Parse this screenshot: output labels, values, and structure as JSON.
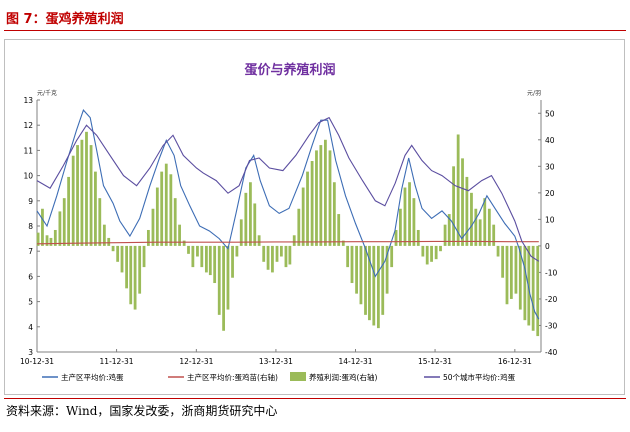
{
  "header": {
    "figure_caption": "图 7：蛋鸡养殖利润"
  },
  "footer": {
    "source": "资料来源：Wind，国家发改委，浙商期货研究中心"
  },
  "colors": {
    "caption_red": "#c00000",
    "egg_price_blue": "#3d6db5",
    "ratio_red": "#c0504d",
    "profit_green": "#9bbb59",
    "city_price_purple": "#5b4ea0",
    "title_purple": "#7030a0"
  },
  "chart_data": {
    "type": "line",
    "title": "蛋价与养殖利润",
    "left_axis": {
      "unit": "元/千克",
      "ylim": [
        3,
        13
      ],
      "ticks": [
        3,
        4,
        5,
        6,
        7,
        8,
        9,
        10,
        11,
        12,
        13
      ]
    },
    "right_axis": {
      "unit": "元/羽",
      "ylim": [
        -40,
        55
      ],
      "ticks": [
        -40,
        -30,
        -20,
        -10,
        0,
        10,
        20,
        30,
        40,
        50
      ]
    },
    "x_axis": {
      "range": [
        "2010-12-31",
        "2017-04-30"
      ],
      "tick_labels": [
        "10-12-31",
        "11-12-31",
        "12-12-31",
        "13-12-31",
        "14-12-31",
        "15-12-31",
        "16-12-31"
      ]
    },
    "grid": false,
    "legend_position": "bottom",
    "series": [
      {
        "name": "主产区平均价:鸡蛋",
        "axis": "left",
        "type": "line",
        "points": [
          [
            "2010-12-31",
            8.6
          ],
          [
            "2011-02-15",
            8.0
          ],
          [
            "2011-04-01",
            9.2
          ],
          [
            "2011-05-15",
            10.5
          ],
          [
            "2011-06-30",
            11.8
          ],
          [
            "2011-08-01",
            12.6
          ],
          [
            "2011-09-01",
            12.3
          ],
          [
            "2011-10-01",
            11.0
          ],
          [
            "2011-11-01",
            9.6
          ],
          [
            "2011-12-15",
            8.9
          ],
          [
            "2012-01-15",
            8.2
          ],
          [
            "2012-03-01",
            7.6
          ],
          [
            "2012-04-15",
            8.3
          ],
          [
            "2012-06-01",
            9.6
          ],
          [
            "2012-07-15",
            10.7
          ],
          [
            "2012-08-15",
            11.4
          ],
          [
            "2012-09-20",
            10.8
          ],
          [
            "2012-10-20",
            9.6
          ],
          [
            "2012-12-01",
            8.8
          ],
          [
            "2013-01-15",
            8.0
          ],
          [
            "2013-03-01",
            7.8
          ],
          [
            "2013-04-15",
            7.5
          ],
          [
            "2013-05-25",
            7.1
          ],
          [
            "2013-07-01",
            8.5
          ],
          [
            "2013-08-15",
            10.3
          ],
          [
            "2013-09-20",
            10.8
          ],
          [
            "2013-10-20",
            9.8
          ],
          [
            "2013-12-01",
            8.8
          ],
          [
            "2014-01-15",
            8.5
          ],
          [
            "2014-03-01",
            8.7
          ],
          [
            "2014-05-01",
            10.0
          ],
          [
            "2014-06-15",
            11.2
          ],
          [
            "2014-07-25",
            12.2
          ],
          [
            "2014-08-25",
            12.2
          ],
          [
            "2014-10-01",
            10.6
          ],
          [
            "2014-11-15",
            9.2
          ],
          [
            "2014-12-31",
            8.1
          ],
          [
            "2015-02-15",
            7.1
          ],
          [
            "2015-04-01",
            6.0
          ],
          [
            "2015-05-15",
            6.6
          ],
          [
            "2015-06-30",
            7.8
          ],
          [
            "2015-08-01",
            9.5
          ],
          [
            "2015-09-01",
            10.7
          ],
          [
            "2015-10-01",
            9.6
          ],
          [
            "2015-11-01",
            8.7
          ],
          [
            "2015-12-15",
            8.3
          ],
          [
            "2016-02-01",
            8.6
          ],
          [
            "2016-03-15",
            8.2
          ],
          [
            "2016-05-01",
            7.5
          ],
          [
            "2016-06-15",
            8.0
          ],
          [
            "2016-07-20",
            8.5
          ],
          [
            "2016-08-25",
            9.2
          ],
          [
            "2016-10-01",
            8.7
          ],
          [
            "2016-11-15",
            8.1
          ],
          [
            "2016-12-31",
            7.6
          ],
          [
            "2017-01-20",
            7.1
          ],
          [
            "2017-02-15",
            6.3
          ],
          [
            "2017-03-10",
            5.3
          ],
          [
            "2017-04-01",
            4.6
          ],
          [
            "2017-04-20",
            4.3
          ]
        ]
      },
      {
        "name": "主产区平均价:蛋鸡苗(右轴)",
        "axis": "right",
        "type": "line",
        "points": [
          [
            "2010-12-31",
            0.8
          ],
          [
            "2011-06-30",
            1.0
          ],
          [
            "2011-12-31",
            1.2
          ],
          [
            "2012-06-30",
            1.4
          ],
          [
            "2012-12-31",
            1.4
          ],
          [
            "2013-06-30",
            1.4
          ],
          [
            "2013-12-31",
            1.5
          ],
          [
            "2014-06-30",
            1.5
          ],
          [
            "2014-12-31",
            1.6
          ],
          [
            "2015-06-30",
            1.6
          ],
          [
            "2015-12-31",
            1.7
          ],
          [
            "2016-06-30",
            1.7
          ],
          [
            "2016-12-31",
            1.6
          ],
          [
            "2017-04-20",
            1.6
          ]
        ]
      },
      {
        "name": "养殖利润:蛋鸡(右轴)",
        "axis": "right",
        "type": "bar",
        "points": [
          [
            "2011-01-05",
            5
          ],
          [
            "2011-01-25",
            14
          ],
          [
            "2011-02-15",
            4
          ],
          [
            "2011-03-05",
            3
          ],
          [
            "2011-03-25",
            6
          ],
          [
            "2011-04-15",
            13
          ],
          [
            "2011-05-05",
            18
          ],
          [
            "2011-05-25",
            26
          ],
          [
            "2011-06-15",
            34
          ],
          [
            "2011-07-05",
            38
          ],
          [
            "2011-07-25",
            40
          ],
          [
            "2011-08-15",
            43
          ],
          [
            "2011-09-05",
            38
          ],
          [
            "2011-09-25",
            28
          ],
          [
            "2011-10-15",
            18
          ],
          [
            "2011-11-05",
            8
          ],
          [
            "2011-11-25",
            3
          ],
          [
            "2011-12-15",
            -2
          ],
          [
            "2012-01-05",
            -6
          ],
          [
            "2012-01-25",
            -10
          ],
          [
            "2012-02-15",
            -16
          ],
          [
            "2012-03-05",
            -22
          ],
          [
            "2012-03-25",
            -24
          ],
          [
            "2012-04-15",
            -18
          ],
          [
            "2012-05-05",
            -8
          ],
          [
            "2012-05-25",
            6
          ],
          [
            "2012-06-15",
            14
          ],
          [
            "2012-07-05",
            22
          ],
          [
            "2012-07-25",
            28
          ],
          [
            "2012-08-15",
            31
          ],
          [
            "2012-09-05",
            27
          ],
          [
            "2012-09-25",
            18
          ],
          [
            "2012-10-15",
            8
          ],
          [
            "2012-11-05",
            2
          ],
          [
            "2012-11-25",
            -3
          ],
          [
            "2012-12-15",
            -8
          ],
          [
            "2013-01-05",
            -4
          ],
          [
            "2013-01-25",
            -8
          ],
          [
            "2013-02-15",
            -10
          ],
          [
            "2013-03-05",
            -11
          ],
          [
            "2013-03-25",
            -14
          ],
          [
            "2013-04-15",
            -26
          ],
          [
            "2013-05-05",
            -32
          ],
          [
            "2013-05-25",
            -24
          ],
          [
            "2013-06-15",
            -12
          ],
          [
            "2013-07-05",
            -4
          ],
          [
            "2013-07-25",
            10
          ],
          [
            "2013-08-15",
            20
          ],
          [
            "2013-09-05",
            24
          ],
          [
            "2013-09-25",
            16
          ],
          [
            "2013-10-15",
            4
          ],
          [
            "2013-11-05",
            -6
          ],
          [
            "2013-11-25",
            -9
          ],
          [
            "2013-12-15",
            -10
          ],
          [
            "2014-01-05",
            -6
          ],
          [
            "2014-01-25",
            -4
          ],
          [
            "2014-02-15",
            -8
          ],
          [
            "2014-03-05",
            -7
          ],
          [
            "2014-03-25",
            4
          ],
          [
            "2014-04-15",
            14
          ],
          [
            "2014-05-05",
            22
          ],
          [
            "2014-05-25",
            28
          ],
          [
            "2014-06-15",
            32
          ],
          [
            "2014-07-05",
            36
          ],
          [
            "2014-07-25",
            38
          ],
          [
            "2014-08-15",
            40
          ],
          [
            "2014-09-05",
            36
          ],
          [
            "2014-09-25",
            24
          ],
          [
            "2014-10-15",
            12
          ],
          [
            "2014-11-05",
            2
          ],
          [
            "2014-11-25",
            -8
          ],
          [
            "2014-12-15",
            -14
          ],
          [
            "2015-01-05",
            -18
          ],
          [
            "2015-01-25",
            -22
          ],
          [
            "2015-02-15",
            -26
          ],
          [
            "2015-03-05",
            -28
          ],
          [
            "2015-03-25",
            -30
          ],
          [
            "2015-04-15",
            -31
          ],
          [
            "2015-05-05",
            -26
          ],
          [
            "2015-05-25",
            -18
          ],
          [
            "2015-06-15",
            -8
          ],
          [
            "2015-07-05",
            6
          ],
          [
            "2015-07-25",
            14
          ],
          [
            "2015-08-15",
            22
          ],
          [
            "2015-09-05",
            24
          ],
          [
            "2015-09-25",
            18
          ],
          [
            "2015-10-15",
            6
          ],
          [
            "2015-11-05",
            -4
          ],
          [
            "2015-11-25",
            -7
          ],
          [
            "2015-12-15",
            -6
          ],
          [
            "2016-01-05",
            -5
          ],
          [
            "2016-01-25",
            -2
          ],
          [
            "2016-02-15",
            8
          ],
          [
            "2016-03-05",
            12
          ],
          [
            "2016-03-25",
            30
          ],
          [
            "2016-04-15",
            42
          ],
          [
            "2016-05-05",
            33
          ],
          [
            "2016-05-25",
            26
          ],
          [
            "2016-06-15",
            20
          ],
          [
            "2016-07-05",
            14
          ],
          [
            "2016-07-25",
            10
          ],
          [
            "2016-08-15",
            18
          ],
          [
            "2016-09-05",
            14
          ],
          [
            "2016-09-25",
            8
          ],
          [
            "2016-10-15",
            -4
          ],
          [
            "2016-11-05",
            -12
          ],
          [
            "2016-11-25",
            -22
          ],
          [
            "2016-12-15",
            -20
          ],
          [
            "2017-01-05",
            -18
          ],
          [
            "2017-01-25",
            -24
          ],
          [
            "2017-02-15",
            -28
          ],
          [
            "2017-03-05",
            -30
          ],
          [
            "2017-03-25",
            -32
          ],
          [
            "2017-04-15",
            -34
          ]
        ]
      },
      {
        "name": "50个城市平均价:鸡蛋",
        "axis": "left",
        "type": "line",
        "points": [
          [
            "2010-12-31",
            9.8
          ],
          [
            "2011-03-01",
            9.5
          ],
          [
            "2011-05-01",
            10.4
          ],
          [
            "2011-07-01",
            11.4
          ],
          [
            "2011-08-15",
            12.0
          ],
          [
            "2011-10-01",
            11.6
          ],
          [
            "2011-12-01",
            10.8
          ],
          [
            "2012-02-01",
            10.0
          ],
          [
            "2012-04-01",
            9.6
          ],
          [
            "2012-06-01",
            10.3
          ],
          [
            "2012-08-01",
            11.2
          ],
          [
            "2012-09-15",
            11.6
          ],
          [
            "2012-11-01",
            10.8
          ],
          [
            "2012-12-31",
            10.3
          ],
          [
            "2013-02-01",
            10.1
          ],
          [
            "2013-04-01",
            9.8
          ],
          [
            "2013-05-25",
            9.3
          ],
          [
            "2013-07-15",
            9.6
          ],
          [
            "2013-09-01",
            10.6
          ],
          [
            "2013-10-15",
            10.7
          ],
          [
            "2013-12-01",
            10.3
          ],
          [
            "2014-02-01",
            10.2
          ],
          [
            "2014-04-01",
            10.8
          ],
          [
            "2014-06-01",
            11.6
          ],
          [
            "2014-07-15",
            12.1
          ],
          [
            "2014-09-01",
            12.3
          ],
          [
            "2014-10-15",
            11.6
          ],
          [
            "2014-12-01",
            10.7
          ],
          [
            "2015-02-01",
            9.8
          ],
          [
            "2015-04-01",
            9.0
          ],
          [
            "2015-05-15",
            8.8
          ],
          [
            "2015-07-01",
            9.7
          ],
          [
            "2015-08-15",
            10.8
          ],
          [
            "2015-09-15",
            11.2
          ],
          [
            "2015-11-01",
            10.6
          ],
          [
            "2015-12-15",
            10.2
          ],
          [
            "2016-02-01",
            10.0
          ],
          [
            "2016-04-01",
            9.6
          ],
          [
            "2016-06-01",
            9.4
          ],
          [
            "2016-08-01",
            9.8
          ],
          [
            "2016-09-15",
            10.0
          ],
          [
            "2016-11-01",
            9.3
          ],
          [
            "2016-12-31",
            8.2
          ],
          [
            "2017-02-01",
            7.4
          ],
          [
            "2017-03-15",
            6.8
          ],
          [
            "2017-04-20",
            6.6
          ]
        ]
      }
    ]
  }
}
